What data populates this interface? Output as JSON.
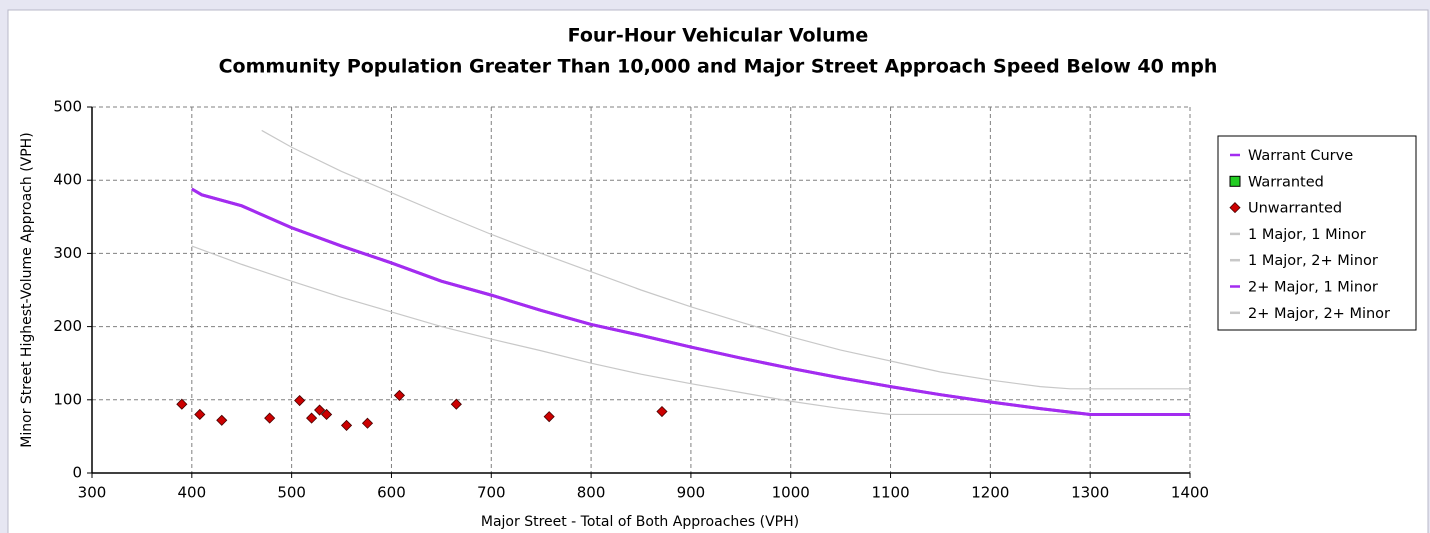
{
  "chart_data": {
    "type": "line",
    "title": "Four-Hour Vehicular Volume",
    "subtitle": "Community Population Greater Than 10,000 and Major Street Approach Speed Below 40 mph",
    "x_label": "Major Street - Total of Both Approaches (VPH)",
    "y_label": "Minor Street Highest-Volume Approach (VPH)",
    "xlim": [
      300,
      1400
    ],
    "xticks": [
      300,
      400,
      500,
      600,
      700,
      800,
      900,
      1000,
      1100,
      1200,
      1300,
      1400
    ],
    "ylim": [
      0,
      500
    ],
    "yticks": [
      0,
      100,
      200,
      300,
      400,
      500
    ],
    "grid": true,
    "legend_position": "right",
    "series": [
      {
        "name": "Warrant Curve",
        "type": "line",
        "color": "#a32cf0",
        "x": [
          400,
          410,
          450,
          500,
          550,
          600,
          650,
          700,
          750,
          800,
          850,
          900,
          950,
          1000,
          1050,
          1100,
          1150,
          1200,
          1250,
          1300,
          1400
        ],
        "values": [
          388,
          380,
          365,
          335,
          310,
          287,
          262,
          243,
          222,
          203,
          188,
          172,
          157,
          143,
          130,
          118,
          107,
          97,
          88,
          80,
          80
        ]
      },
      {
        "name": "Warranted",
        "type": "scatter",
        "color": "#22cc22",
        "x": [],
        "values": []
      },
      {
        "name": "Unwarranted",
        "type": "scatter",
        "color": "#cc0000",
        "x": [
          390,
          408,
          430,
          478,
          508,
          520,
          528,
          535,
          555,
          576,
          608,
          665,
          758,
          871
        ],
        "values": [
          94,
          80,
          72,
          75,
          99,
          75,
          86,
          80,
          65,
          68,
          106,
          94,
          77,
          84
        ]
      },
      {
        "name": "1 Major, 1 Minor",
        "type": "line",
        "color": "#c8c8c8",
        "x": [
          400,
          450,
          500,
          550,
          600,
          650,
          700,
          750,
          800,
          850,
          900,
          950,
          1000,
          1050,
          1100,
          1400
        ],
        "values": [
          310,
          285,
          262,
          240,
          220,
          200,
          183,
          167,
          150,
          135,
          122,
          110,
          98,
          88,
          80,
          80
        ]
      },
      {
        "name": "1 Major, 2+ Minor",
        "type": "line",
        "color": "#c8c8c8",
        "x": [
          400,
          410,
          450,
          500,
          550,
          600,
          650,
          700,
          750,
          800,
          850,
          900,
          950,
          1000,
          1050,
          1100,
          1150,
          1200,
          1250,
          1300,
          1400
        ],
        "values": [
          388,
          380,
          365,
          335,
          310,
          287,
          262,
          243,
          222,
          203,
          188,
          172,
          157,
          143,
          130,
          118,
          107,
          97,
          88,
          80,
          80
        ]
      },
      {
        "name": "2+ Major, 1 Minor",
        "type": "line",
        "color": "#a32cf0",
        "x": [
          400,
          410,
          450,
          500,
          550,
          600,
          650,
          700,
          750,
          800,
          850,
          900,
          950,
          1000,
          1050,
          1100,
          1150,
          1200,
          1250,
          1300,
          1400
        ],
        "values": [
          388,
          380,
          365,
          335,
          310,
          287,
          262,
          243,
          222,
          203,
          188,
          172,
          157,
          143,
          130,
          118,
          107,
          97,
          88,
          80,
          80
        ]
      },
      {
        "name": "2+ Major, 2+ Minor",
        "type": "line",
        "color": "#c8c8c8",
        "x": [
          470,
          500,
          550,
          600,
          650,
          700,
          750,
          800,
          850,
          900,
          950,
          1000,
          1050,
          1100,
          1150,
          1200,
          1250,
          1280,
          1400
        ],
        "values": [
          468,
          445,
          412,
          383,
          354,
          326,
          300,
          275,
          250,
          227,
          206,
          186,
          168,
          153,
          138,
          127,
          118,
          115,
          115
        ]
      }
    ]
  }
}
